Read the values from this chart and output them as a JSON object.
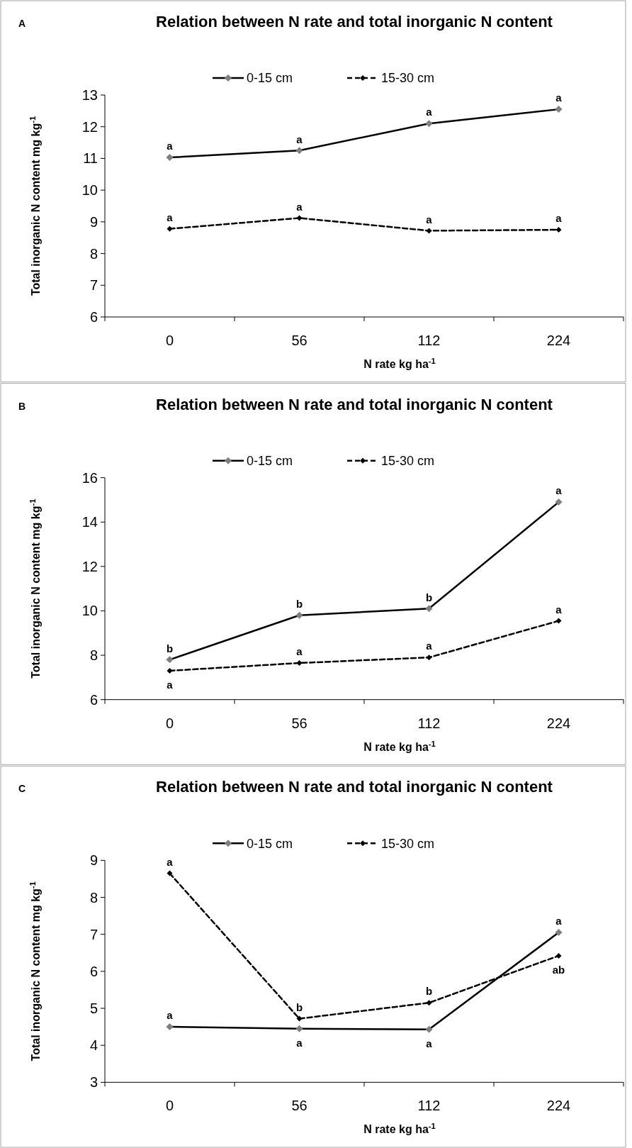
{
  "chart_data": [
    {
      "type": "line",
      "title": "Relation between N rate and total inorganic N content",
      "xlabel": "N rate kg ha$^{-1}$",
      "ylabel": "Total inorganic N content mg kg$^{-1}$",
      "categories": [
        "0",
        "56",
        "112",
        "224"
      ],
      "ylim": [
        6,
        13
      ],
      "yticks": [
        6,
        7,
        8,
        9,
        10,
        11,
        12,
        13
      ],
      "legend": "top",
      "marker": "diamond",
      "grid": false,
      "series": [
        {
          "name": "0-15 cm",
          "color": "#000000",
          "line_style": "solid",
          "values": [
            11.03,
            11.25,
            12.1,
            12.55
          ]
        },
        {
          "name": "15-30 cm",
          "color": "#000000",
          "line_style": "dashed",
          "values": [
            8.78,
            9.12,
            8.72,
            8.75
          ]
        }
      ],
      "annotations": [
        "A",
        {
          "text": "a",
          "x": "0",
          "y": 11.03
        },
        {
          "text": "a",
          "x": "56",
          "y": 11.25
        },
        {
          "text": "a",
          "x": "112",
          "y": 12.1
        },
        {
          "text": "a",
          "x": "224",
          "y": 12.55
        },
        {
          "text": "a",
          "x": "0",
          "y": 8.78
        },
        {
          "text": "a",
          "x": "56",
          "y": 9.12
        },
        {
          "text": "a",
          "x": "112",
          "y": 8.72
        },
        {
          "text": "a",
          "x": "224",
          "y": 8.75
        }
      ]
    },
    {
      "type": "line",
      "title": "Relation between N rate and total inorganic N content",
      "xlabel": "N rate kg ha$^{-1}$",
      "ylabel": "Total inorganic N content mg kg$^{-1}$",
      "categories": [
        "0",
        "56",
        "112",
        "224"
      ],
      "ylim": [
        6,
        16
      ],
      "yticks": [
        6,
        8,
        10,
        12,
        14,
        16
      ],
      "legend": "top",
      "marker": "diamond",
      "grid": false,
      "series": [
        {
          "name": "0-15 cm",
          "color": "#000000",
          "line_style": "solid",
          "values": [
            7.8,
            9.8,
            10.1,
            14.9
          ]
        },
        {
          "name": "15-30 cm",
          "color": "#000000",
          "line_style": "dashed",
          "values": [
            7.3,
            7.65,
            7.9,
            9.55
          ]
        }
      ],
      "annotations": [
        "B",
        {
          "text": "b",
          "x": "0",
          "y": 7.8
        },
        {
          "text": "b",
          "x": "56",
          "y": 9.8
        },
        {
          "text": "b",
          "x": "112",
          "y": 10.1
        },
        {
          "text": "a",
          "x": "224",
          "y": 14.9
        },
        {
          "text": "a",
          "x": "0",
          "y": 7.3
        },
        {
          "text": "a",
          "x": "56",
          "y": 7.65
        },
        {
          "text": "a",
          "x": "112",
          "y": 7.9
        },
        {
          "text": "a",
          "x": "224",
          "y": 9.55
        }
      ]
    },
    {
      "type": "line",
      "title": "Relation between N rate and total inorganic N content",
      "xlabel": "N rate kg ha$^{-1}$",
      "ylabel": "Total inorganic N content mg kg$^{-1}$",
      "categories": [
        "0",
        "56",
        "112",
        "224"
      ],
      "ylim": [
        3,
        9
      ],
      "yticks": [
        3,
        4,
        5,
        6,
        7,
        8,
        9
      ],
      "legend": "top",
      "marker": "diamond",
      "grid": false,
      "series": [
        {
          "name": "0-15 cm",
          "color": "#000000",
          "line_style": "solid",
          "values": [
            4.5,
            4.45,
            4.43,
            7.05
          ]
        },
        {
          "name": "15-30 cm",
          "color": "#000000",
          "line_style": "dashed",
          "values": [
            8.65,
            4.72,
            5.15,
            6.42
          ]
        }
      ],
      "annotations": [
        "C",
        {
          "text": "a",
          "x": "0",
          "y": 4.5
        },
        {
          "text": "a",
          "x": "56",
          "y": 4.45
        },
        {
          "text": "a",
          "x": "112",
          "y": 4.43
        },
        {
          "text": "a",
          "x": "224",
          "y": 7.05
        },
        {
          "text": "a",
          "x": "0",
          "y": 8.65
        },
        {
          "text": "b",
          "x": "56",
          "y": 4.72
        },
        {
          "text": "b",
          "x": "112",
          "y": 5.15
        },
        {
          "text": "ab",
          "x": "224",
          "y": 6.42
        }
      ]
    }
  ]
}
